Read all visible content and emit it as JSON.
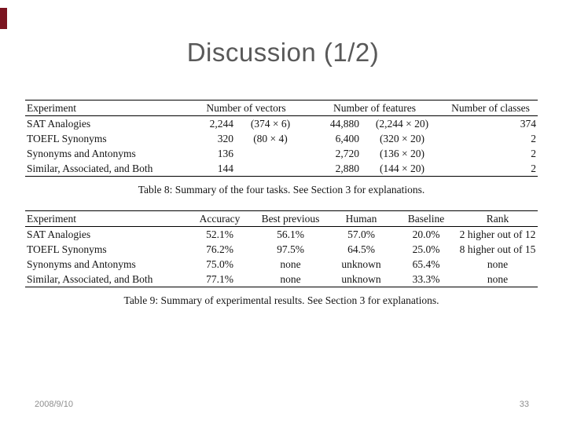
{
  "slide": {
    "title": "Discussion (1/2)",
    "footer_date": "2008/9/10",
    "footer_page": "33",
    "accent_color": "#7b1420"
  },
  "table8": {
    "caption": "Table 8: Summary of the four tasks. See Section 3 for explanations.",
    "headers": {
      "experiment": "Experiment",
      "vectors": "Number of vectors",
      "features": "Number of features",
      "classes": "Number of classes"
    },
    "rows": [
      {
        "experiment": "SAT Analogies",
        "vectors": "2,244",
        "vectors_detail": "(374 × 6)",
        "features": "44,880",
        "features_detail": "(2,244 × 20)",
        "classes": "374"
      },
      {
        "experiment": "TOEFL Synonyms",
        "vectors": "320",
        "vectors_detail": "(80 × 4)",
        "features": "6,400",
        "features_detail": "(320 × 20)",
        "classes": "2"
      },
      {
        "experiment": "Synonyms and Antonyms",
        "vectors": "136",
        "vectors_detail": "",
        "features": "2,720",
        "features_detail": "(136 × 20)",
        "classes": "2"
      },
      {
        "experiment": "Similar, Associated, and Both",
        "vectors": "144",
        "vectors_detail": "",
        "features": "2,880",
        "features_detail": "(144 × 20)",
        "classes": "2"
      }
    ]
  },
  "table9": {
    "caption": "Table 9: Summary of experimental results. See Section 3 for explanations.",
    "headers": [
      "Experiment",
      "Accuracy",
      "Best previous",
      "Human",
      "Baseline",
      "Rank"
    ],
    "rows": [
      [
        "SAT Analogies",
        "52.1%",
        "56.1%",
        "57.0%",
        "20.0%",
        "2 higher out of 12"
      ],
      [
        "TOEFL Synonyms",
        "76.2%",
        "97.5%",
        "64.5%",
        "25.0%",
        "8 higher out of 15"
      ],
      [
        "Synonyms and Antonyms",
        "75.0%",
        "none",
        "unknown",
        "65.4%",
        "none"
      ],
      [
        "Similar, Associated, and Both",
        "77.1%",
        "none",
        "unknown",
        "33.3%",
        "none"
      ]
    ]
  }
}
